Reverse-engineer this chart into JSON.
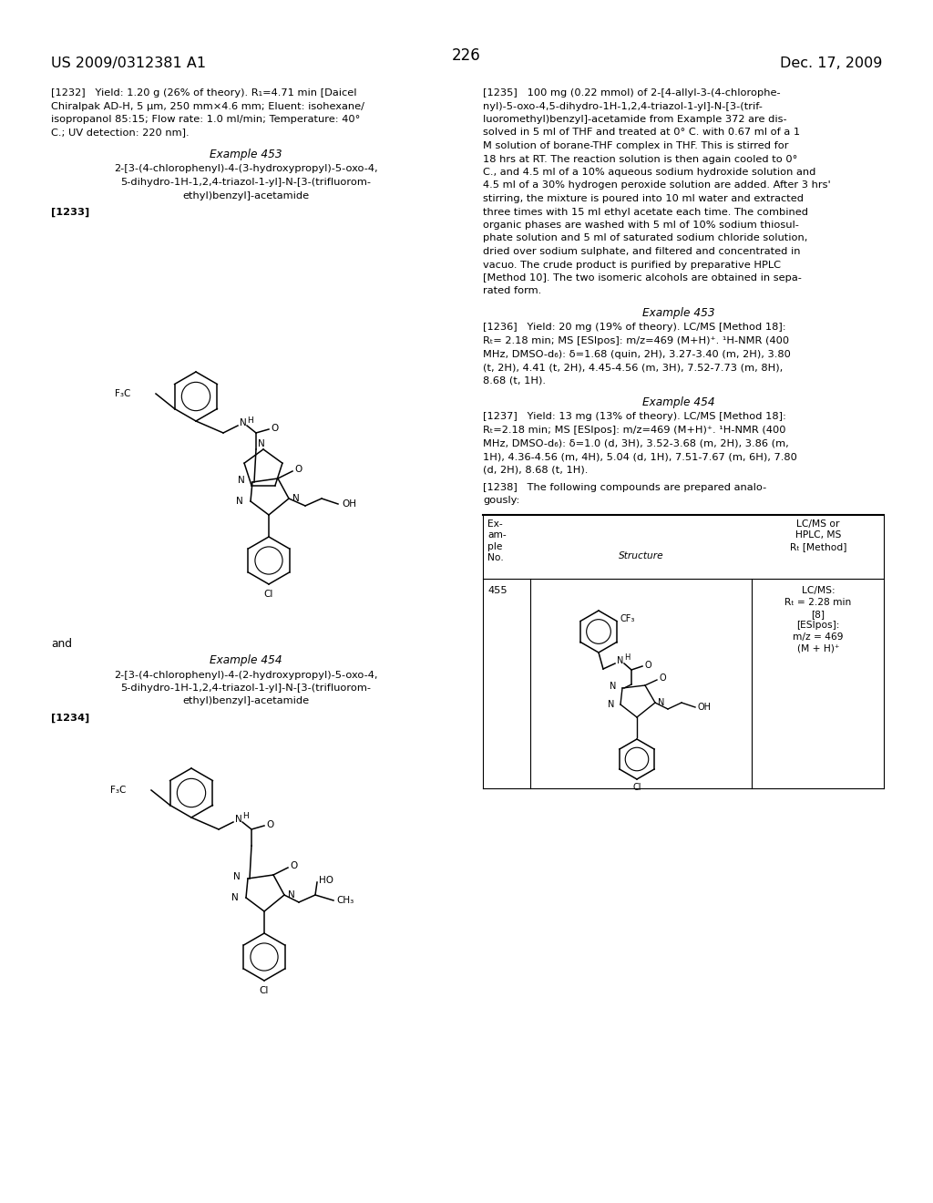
{
  "bg_color": "#ffffff",
  "font_color": "#000000",
  "page_number": "226",
  "header_left": "US 2009/0312381 A1",
  "header_right": "Dec. 17, 2009"
}
